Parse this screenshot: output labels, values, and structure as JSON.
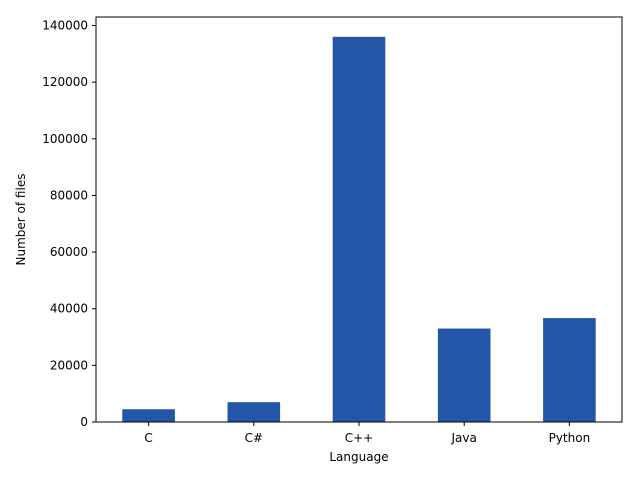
{
  "chart_data": {
    "type": "bar",
    "categories": [
      "C",
      "C#",
      "C++",
      "Java",
      "Python"
    ],
    "values": [
      4500,
      7000,
      136000,
      33000,
      36700
    ],
    "xlabel": "Language",
    "ylabel": "Number of files",
    "ylim": [
      0,
      143000
    ],
    "yticks": [
      0,
      20000,
      40000,
      60000,
      80000,
      100000,
      120000,
      140000
    ],
    "grid": false,
    "legend": "none",
    "bar_color": "#2356a6"
  }
}
